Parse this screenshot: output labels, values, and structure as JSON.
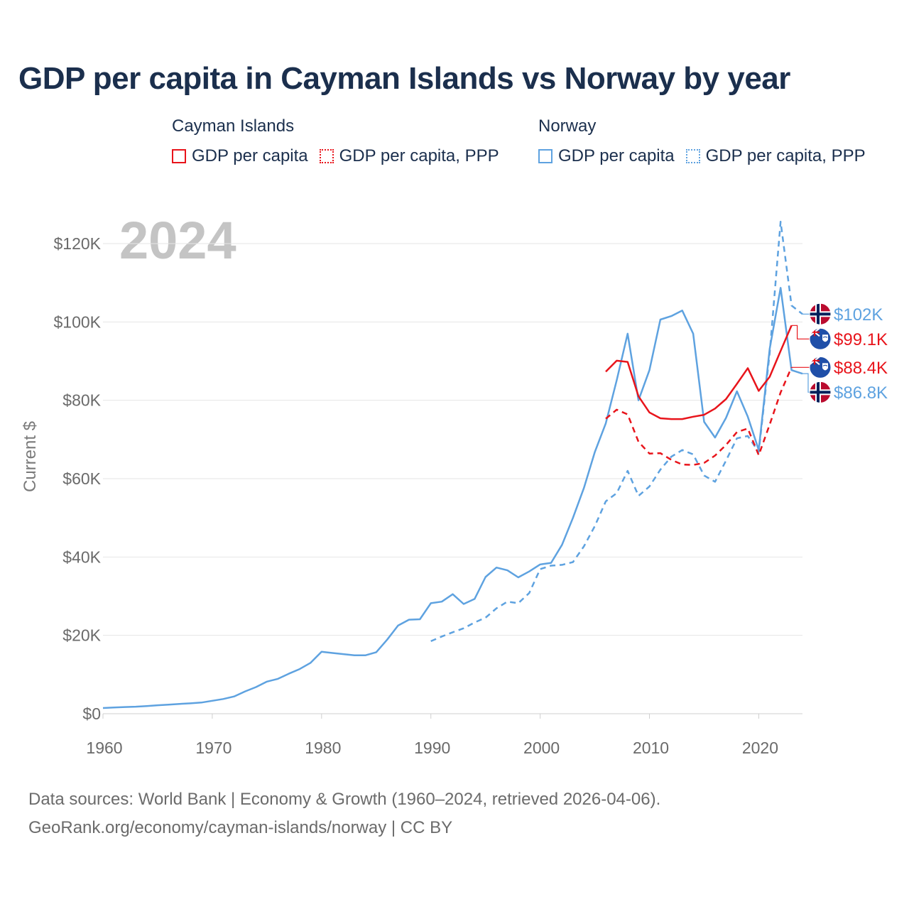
{
  "title": "GDP per capita in Cayman Islands vs Norway by year",
  "legend": {
    "groups": [
      {
        "name": "Cayman Islands",
        "items": [
          {
            "label": "GDP per capita",
            "style": "solid",
            "color": "#e8141b"
          },
          {
            "label": "GDP per capita, PPP",
            "style": "dotted",
            "color": "#e8141b"
          }
        ]
      },
      {
        "name": "Norway",
        "items": [
          {
            "label": "GDP per capita",
            "style": "solid",
            "color": "#5ea2e0"
          },
          {
            "label": "GDP per capita, PPP",
            "style": "dotted",
            "color": "#5ea2e0"
          }
        ]
      }
    ]
  },
  "source": {
    "line1": "Data sources: World Bank | Economy & Growth (1960–2024, retrieved 2026-04-06).",
    "line2": "GeoRank.org/economy/cayman-islands/norway | CC BY"
  },
  "chart_data": {
    "type": "line",
    "year_label": "2024",
    "ylabel": "Current $",
    "xlim": [
      1960,
      2024
    ],
    "ylim": [
      0,
      130000
    ],
    "xticks": [
      1960,
      1970,
      1980,
      1990,
      2000,
      2010,
      2020
    ],
    "xtick_labels": [
      "1960",
      "1970",
      "1980",
      "1990",
      "2000",
      "2010",
      "2020"
    ],
    "yticks": [
      0,
      20000,
      40000,
      60000,
      80000,
      100000,
      120000
    ],
    "ytick_labels": [
      "$0",
      "$20K",
      "$40K",
      "$60K",
      "$80K",
      "$100K",
      "$120K"
    ],
    "series": [
      {
        "name": "Norway GDP per capita",
        "country": "Norway",
        "color": "#5ea2e0",
        "dash": "solid",
        "end_label": "$86.8K",
        "x": [
          1960,
          1961,
          1962,
          1963,
          1964,
          1965,
          1966,
          1967,
          1968,
          1969,
          1970,
          1971,
          1972,
          1973,
          1974,
          1975,
          1976,
          1977,
          1978,
          1979,
          1980,
          1981,
          1982,
          1983,
          1984,
          1985,
          1986,
          1987,
          1988,
          1989,
          1990,
          1991,
          1992,
          1993,
          1994,
          1995,
          1996,
          1997,
          1998,
          1999,
          2000,
          2001,
          2002,
          2003,
          2004,
          2005,
          2006,
          2007,
          2008,
          2009,
          2010,
          2011,
          2012,
          2013,
          2014,
          2015,
          2016,
          2017,
          2018,
          2019,
          2020,
          2021,
          2022,
          2023,
          2024
        ],
        "values": [
          1450,
          1600,
          1700,
          1800,
          1950,
          2150,
          2300,
          2500,
          2650,
          2850,
          3300,
          3750,
          4400,
          5700,
          6800,
          8200,
          8900,
          10200,
          11400,
          13000,
          15800,
          15500,
          15200,
          14900,
          14900,
          15700,
          18900,
          22500,
          24000,
          24100,
          28200,
          28600,
          30500,
          28000,
          29300,
          34900,
          37300,
          36600,
          34800,
          36300,
          38100,
          38500,
          43100,
          50000,
          57600,
          66800,
          74100,
          85100,
          97000,
          80000,
          87700,
          100600,
          101500,
          102900,
          97000,
          74500,
          70500,
          75500,
          82300,
          75800,
          67300,
          93100,
          108700,
          87700,
          86800
        ]
      },
      {
        "name": "Norway GDP per capita, PPP",
        "country": "Norway",
        "color": "#5ea2e0",
        "dash": "dashed",
        "end_label": "$102K",
        "x": [
          1990,
          1991,
          1992,
          1993,
          1994,
          1995,
          1996,
          1997,
          1998,
          1999,
          2000,
          2001,
          2002,
          2003,
          2004,
          2005,
          2006,
          2007,
          2008,
          2009,
          2010,
          2011,
          2012,
          2013,
          2014,
          2015,
          2016,
          2017,
          2018,
          2019,
          2020,
          2021,
          2022,
          2023,
          2024
        ],
        "values": [
          18500,
          19700,
          20800,
          21800,
          23300,
          24500,
          26900,
          28600,
          28200,
          30800,
          36900,
          37800,
          38000,
          38700,
          42700,
          47900,
          54200,
          56300,
          62000,
          55600,
          58000,
          62300,
          65600,
          67300,
          66200,
          60800,
          59200,
          64600,
          70300,
          70900,
          66800,
          92000,
          125600,
          104200,
          102000
        ]
      },
      {
        "name": "Cayman Islands GDP per capita",
        "country": "Cayman Islands",
        "color": "#e8141b",
        "dash": "solid",
        "end_label": "$99.1K",
        "x": [
          2006,
          2007,
          2008,
          2009,
          2010,
          2011,
          2012,
          2013,
          2014,
          2015,
          2016,
          2017,
          2018,
          2019,
          2020,
          2021,
          2022,
          2023
        ],
        "values": [
          87300,
          90100,
          89800,
          81000,
          76900,
          75400,
          75200,
          75200,
          75800,
          76300,
          77900,
          80300,
          84200,
          88200,
          82400,
          86000,
          92600,
          99100
        ]
      },
      {
        "name": "Cayman Islands GDP per capita, PPP",
        "country": "Cayman Islands",
        "color": "#e8141b",
        "dash": "dashed",
        "end_label": "$88.4K",
        "x": [
          2006,
          2007,
          2008,
          2009,
          2010,
          2011,
          2012,
          2013,
          2014,
          2015,
          2016,
          2017,
          2018,
          2019,
          2020,
          2021,
          2022,
          2023
        ],
        "values": [
          75300,
          77600,
          76400,
          69400,
          66400,
          66500,
          64800,
          63600,
          63500,
          64000,
          65900,
          68600,
          71900,
          72800,
          66000,
          73800,
          82000,
          88400
        ]
      }
    ]
  }
}
